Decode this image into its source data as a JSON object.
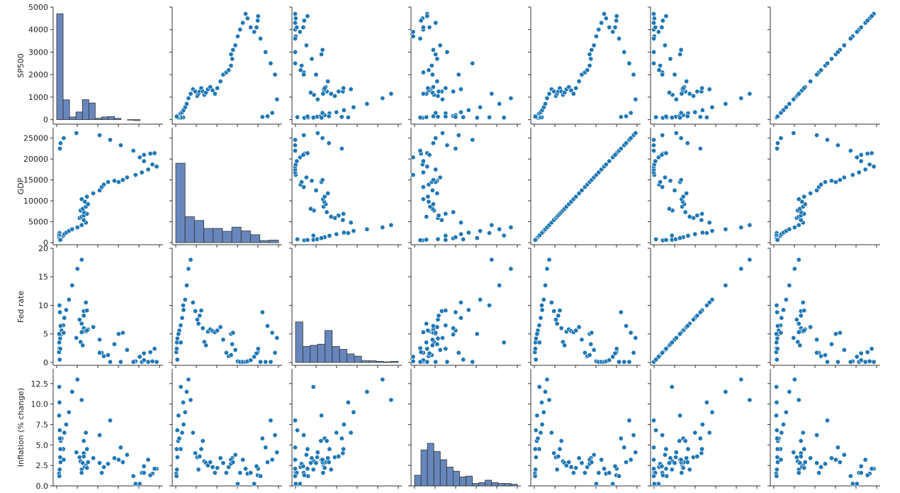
{
  "chart_data": {
    "type": "scatter",
    "subtype": "pairplot",
    "variables": [
      "SP500",
      "GDP",
      "Fed rate",
      "Inflation (% change)"
    ],
    "point_color": "#1f77b4",
    "hist_color": "#4c72b0",
    "grid": false,
    "ranges": {
      "SP500": [
        -200,
        5000
      ],
      "GDP": [
        -500,
        27500
      ],
      "Fed rate": [
        -0.5,
        20
      ],
      "Inflation (% change)": [
        0,
        14.3
      ]
    },
    "yticks": {
      "SP500": [
        0,
        1000,
        2000,
        3000,
        4000,
        5000
      ],
      "GDP": [
        0,
        5000,
        10000,
        15000,
        20000,
        25000
      ],
      "Fed rate": [
        0,
        5,
        10,
        15,
        20
      ],
      "Inflation (% change)": [
        0.0,
        2.5,
        5.0,
        7.5,
        10.0,
        12.5
      ]
    },
    "ytick_labels": {
      "SP500": [
        "0",
        "1000",
        "2000",
        "3000",
        "4000",
        "5000"
      ],
      "GDP": [
        "0",
        "5000",
        "10000",
        "15000",
        "20000",
        "25000"
      ],
      "Fed rate": [
        "0",
        "5",
        "10",
        "15",
        "20"
      ],
      "Inflation (% change)": [
        "0.0",
        "2.5",
        "5.0",
        "7.5",
        "10.0",
        "12.5"
      ]
    },
    "histograms": {
      "SP500": [
        4700,
        880,
        120,
        340,
        890,
        740,
        60,
        120,
        140,
        60,
        0,
        -20,
        -40,
        0,
        0,
        0
      ],
      "GDP": [
        19000,
        6200,
        5300,
        3400,
        3400,
        2700,
        3700,
        2800,
        1900,
        500,
        600
      ],
      "Fed rate": [
        7.1,
        2.8,
        3.0,
        3.2,
        5.6,
        2.8,
        2.3,
        1.5,
        1.1,
        0.3,
        0.3,
        0.2,
        0.1,
        0.2
      ],
      "Inflation (% change)": [
        1.3,
        4.4,
        5.2,
        4.2,
        3.2,
        2.3,
        1.8,
        1.1,
        1.2,
        0.3,
        0.4,
        0.7,
        0.4,
        0.3,
        0.3,
        0.2
      ]
    },
    "points": {
      "SP500": [
        80,
        95,
        110,
        130,
        160,
        200,
        280,
        330,
        420,
        550,
        700,
        950,
        1150,
        1350,
        1250,
        1050,
        1150,
        1250,
        1400,
        1250,
        1100,
        1200,
        1350,
        1450,
        1300,
        1150,
        1400,
        1700,
        2000,
        2100,
        2200,
        2400,
        2700,
        2900,
        3100,
        3300,
        3700,
        4000,
        4300,
        4700,
        4500,
        4100,
        3900,
        4400,
        4600,
        4100,
        3600,
        3000,
        2500,
        2000,
        900,
        300,
        150,
        120,
        100,
        90,
        85,
        110,
        140
      ],
      "GDP": [
        543,
        600,
        700,
        830,
        1040,
        1300,
        1650,
        2030,
        2400,
        2800,
        3200,
        3650,
        4200,
        4800,
        5400,
        5900,
        6200,
        6500,
        6900,
        7300,
        7700,
        8100,
        8600,
        9200,
        9800,
        10400,
        11000,
        11800,
        12500,
        13300,
        13900,
        14500,
        14800,
        14500,
        15000,
        15600,
        16200,
        16800,
        17500,
        18200,
        18700,
        19500,
        20400,
        21300,
        21400,
        21000,
        22000,
        23300,
        24600,
        25700,
        26200,
        25000,
        23800,
        22500,
        2300,
        1700,
        1100,
        800,
        650
      ],
      "Fed rate": [
        1.8,
        2.5,
        3.5,
        4.2,
        4.9,
        5.6,
        6.5,
        7.8,
        9.2,
        11.0,
        13.5,
        16.4,
        18.0,
        10.5,
        9.0,
        7.5,
        6.8,
        8.2,
        9.1,
        6.0,
        3.6,
        3.0,
        5.4,
        5.8,
        5.5,
        5.3,
        5.6,
        6.2,
        4.0,
        1.7,
        1.1,
        1.3,
        3.2,
        5.0,
        5.2,
        2.2,
        0.2,
        0.1,
        0.1,
        0.1,
        0.2,
        0.4,
        1.0,
        1.8,
        2.4,
        1.6,
        0.1,
        0.1,
        0.1,
        1.7,
        4.3,
        5.2,
        6.4,
        8.8,
        10.0,
        3.5,
        5.0,
        0.5,
        2.4
      ],
      "Inflation (% change)": [
        1.5,
        1.2,
        2.0,
        3.5,
        5.5,
        5.8,
        4.5,
        6.5,
        7.5,
        9.0,
        11.5,
        13.0,
        10.5,
        6.5,
        4.0,
        3.5,
        2.0,
        3.6,
        4.5,
        5.5,
        3.0,
        2.8,
        2.5,
        2.9,
        2.3,
        1.6,
        2.2,
        3.4,
        2.8,
        1.6,
        2.3,
        2.7,
        3.4,
        3.2,
        2.9,
        3.8,
        -0.4,
        1.6,
        3.2,
        2.1,
        1.5,
        1.6,
        0.1,
        1.3,
        2.1,
        2.4,
        1.2,
        4.7,
        8.0,
        6.2,
        4.1,
        3.2,
        2.9,
        5.8,
        10.2,
        12.1,
        8.6,
        6.8,
        4.5
      ]
    }
  }
}
